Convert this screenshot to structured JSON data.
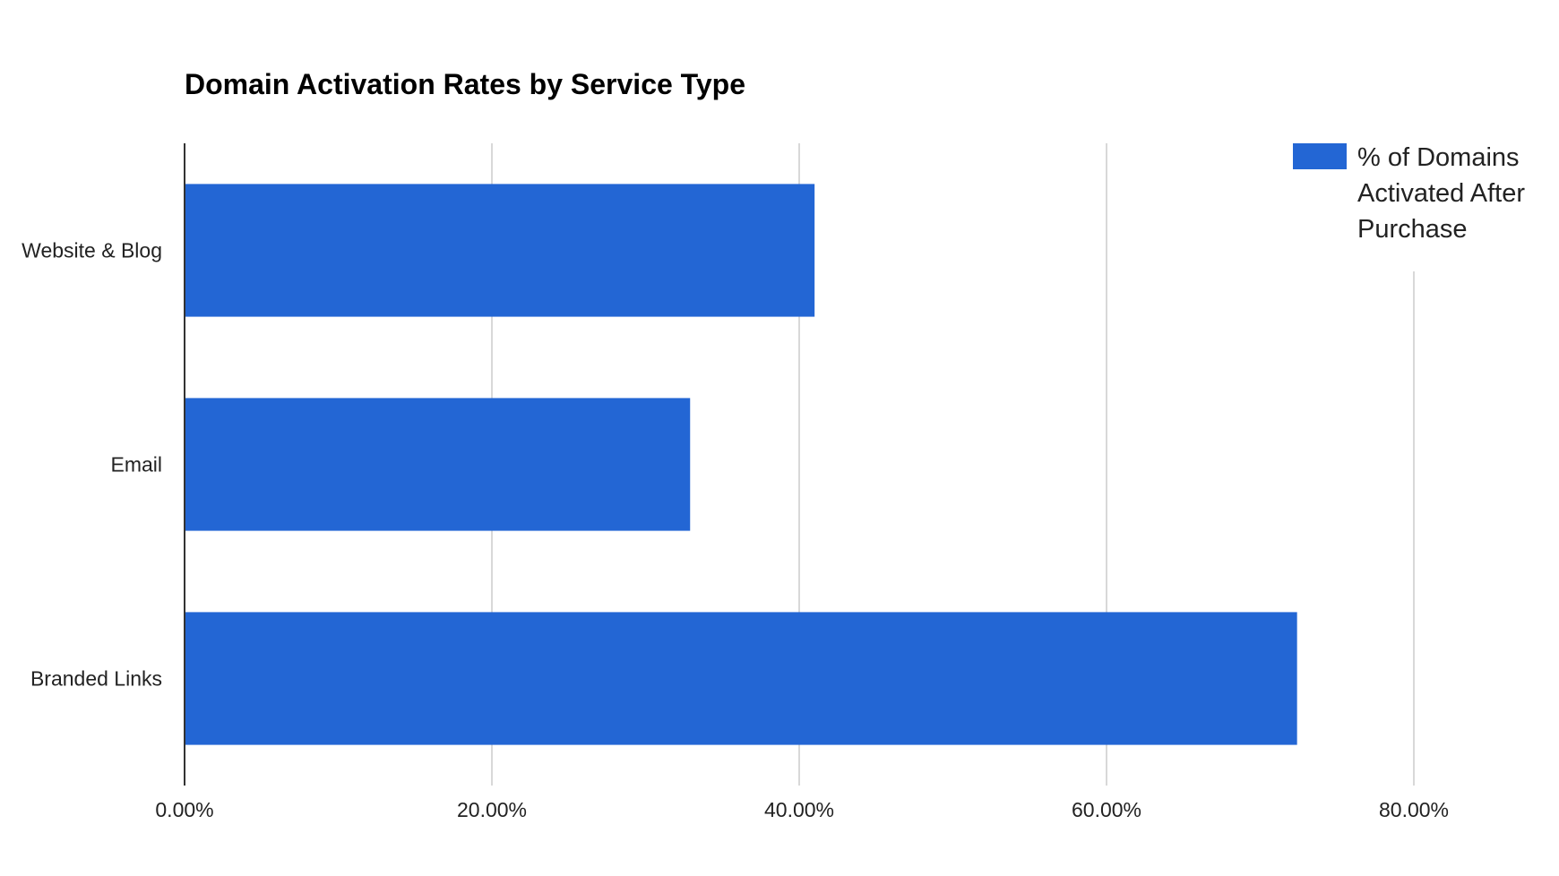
{
  "chart_data": {
    "type": "bar",
    "orientation": "horizontal",
    "title": "Domain Activation Rates by Service Type",
    "xlabel": "",
    "ylabel": "",
    "categories": [
      "Website & Blog",
      "Email",
      "Branded Links"
    ],
    "series": [
      {
        "name": "% of Domains Activated After Purchase",
        "values": [
          41.0,
          32.9,
          72.4
        ],
        "color": "#2366d4"
      }
    ],
    "xlim": [
      0,
      80
    ],
    "x_ticks": [
      0,
      20,
      40,
      60,
      80
    ],
    "x_tick_labels": [
      "0.00%",
      "20.00%",
      "40.00%",
      "60.00%",
      "80.00%"
    ],
    "grid": true,
    "gridline_color": "#cccccc",
    "legend_position": "top-right",
    "legend_lines": [
      "% of Domains",
      "Activated After",
      "Purchase"
    ]
  }
}
